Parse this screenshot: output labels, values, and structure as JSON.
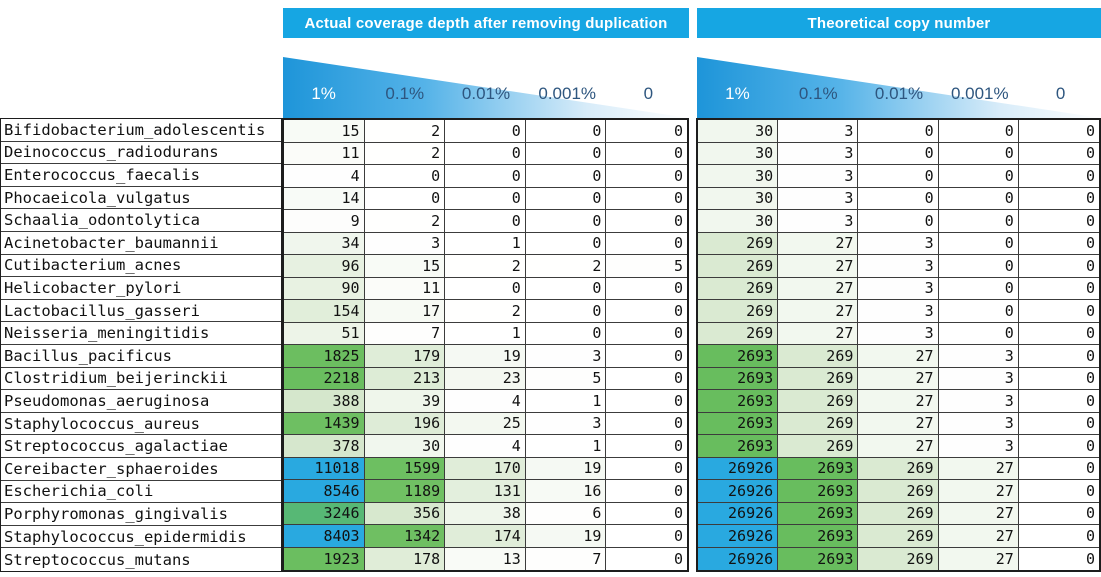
{
  "banners": {
    "left": "Actual coverage depth after removing duplication",
    "right": "Theoretical copy number"
  },
  "columns": [
    "1%",
    "0.1%",
    "0.01%",
    "0.001%",
    "0"
  ],
  "colors": {
    "banner_blue": "#16a6e3",
    "wedge_blue": "#1e95d9",
    "cell_blue": "#29a9e0",
    "cell_green": "#6cbe60",
    "cell_light_green": "#d9ead1",
    "header_label_dark": "#2e567f",
    "grid_line": "#3c3c3c"
  },
  "color_scale": {
    "type": "log",
    "anchors": [
      [
        1,
        "#ffffff"
      ],
      [
        8,
        "#fefefd"
      ],
      [
        30,
        "#f1f7ee"
      ],
      [
        100,
        "#e7f1e1"
      ],
      [
        400,
        "#d5e7cc"
      ],
      [
        1150,
        "#70c063"
      ],
      [
        2750,
        "#68bd5e"
      ],
      [
        3300,
        "#55b877"
      ],
      [
        8400,
        "#29a9e0"
      ],
      [
        27000,
        "#29a9e0"
      ]
    ]
  },
  "chart_data": [
    {
      "type": "heatmap",
      "title": "Actual coverage depth after removing duplication",
      "columns": [
        "1%",
        "0.1%",
        "0.01%",
        "0.001%",
        "0"
      ],
      "rows": [
        "Bifidobacterium_adolescentis",
        "Deinococcus_radiodurans",
        "Enterococcus_faecalis",
        "Phocaeicola_vulgatus",
        "Schaalia_odontolytica",
        "Acinetobacter_baumannii",
        "Cutibacterium_acnes",
        "Helicobacter_pylori",
        "Lactobacillus_gasseri",
        "Neisseria_meningitidis",
        "Bacillus_pacificus",
        "Clostridium_beijerinckii",
        "Pseudomonas_aeruginosa",
        "Staphylococcus_aureus",
        "Streptococcus_agalactiae",
        "Cereibacter_sphaeroides",
        "Escherichia_coli",
        "Porphyromonas_gingivalis",
        "Staphylococcus_epidermidis",
        "Streptococcus_mutans"
      ],
      "values": [
        [
          15,
          2,
          0,
          0,
          0
        ],
        [
          11,
          2,
          0,
          0,
          0
        ],
        [
          4,
          0,
          0,
          0,
          0
        ],
        [
          14,
          0,
          0,
          0,
          0
        ],
        [
          9,
          2,
          0,
          0,
          0
        ],
        [
          34,
          3,
          1,
          0,
          0
        ],
        [
          96,
          15,
          2,
          2,
          5
        ],
        [
          90,
          11,
          0,
          0,
          0
        ],
        [
          154,
          17,
          2,
          0,
          0
        ],
        [
          51,
          7,
          1,
          0,
          0
        ],
        [
          1825,
          179,
          19,
          3,
          0
        ],
        [
          2218,
          213,
          23,
          5,
          0
        ],
        [
          388,
          39,
          4,
          1,
          0
        ],
        [
          1439,
          196,
          25,
          3,
          0
        ],
        [
          378,
          30,
          4,
          1,
          0
        ],
        [
          11018,
          1599,
          170,
          19,
          0
        ],
        [
          8546,
          1189,
          131,
          16,
          0
        ],
        [
          3246,
          356,
          38,
          6,
          0
        ],
        [
          8403,
          1342,
          174,
          19,
          0
        ],
        [
          1923,
          178,
          13,
          7,
          0
        ]
      ]
    },
    {
      "type": "heatmap",
      "title": "Theoretical copy number",
      "columns": [
        "1%",
        "0.1%",
        "0.01%",
        "0.001%",
        "0"
      ],
      "rows": [
        "Bifidobacterium_adolescentis",
        "Deinococcus_radiodurans",
        "Enterococcus_faecalis",
        "Phocaeicola_vulgatus",
        "Schaalia_odontolytica",
        "Acinetobacter_baumannii",
        "Cutibacterium_acnes",
        "Helicobacter_pylori",
        "Lactobacillus_gasseri",
        "Neisseria_meningitidis",
        "Bacillus_pacificus",
        "Clostridium_beijerinckii",
        "Pseudomonas_aeruginosa",
        "Staphylococcus_aureus",
        "Streptococcus_agalactiae",
        "Cereibacter_sphaeroides",
        "Escherichia_coli",
        "Porphyromonas_gingivalis",
        "Staphylococcus_epidermidis",
        "Streptococcus_mutans"
      ],
      "values": [
        [
          30,
          3,
          0,
          0,
          0
        ],
        [
          30,
          3,
          0,
          0,
          0
        ],
        [
          30,
          3,
          0,
          0,
          0
        ],
        [
          30,
          3,
          0,
          0,
          0
        ],
        [
          30,
          3,
          0,
          0,
          0
        ],
        [
          269,
          27,
          3,
          0,
          0
        ],
        [
          269,
          27,
          3,
          0,
          0
        ],
        [
          269,
          27,
          3,
          0,
          0
        ],
        [
          269,
          27,
          3,
          0,
          0
        ],
        [
          269,
          27,
          3,
          0,
          0
        ],
        [
          2693,
          269,
          27,
          3,
          0
        ],
        [
          2693,
          269,
          27,
          3,
          0
        ],
        [
          2693,
          269,
          27,
          3,
          0
        ],
        [
          2693,
          269,
          27,
          3,
          0
        ],
        [
          2693,
          269,
          27,
          3,
          0
        ],
        [
          26926,
          2693,
          269,
          27,
          0
        ],
        [
          26926,
          2693,
          269,
          27,
          0
        ],
        [
          26926,
          2693,
          269,
          27,
          0
        ],
        [
          26926,
          2693,
          269,
          27,
          0
        ],
        [
          26926,
          2693,
          269,
          27,
          0
        ]
      ]
    }
  ]
}
